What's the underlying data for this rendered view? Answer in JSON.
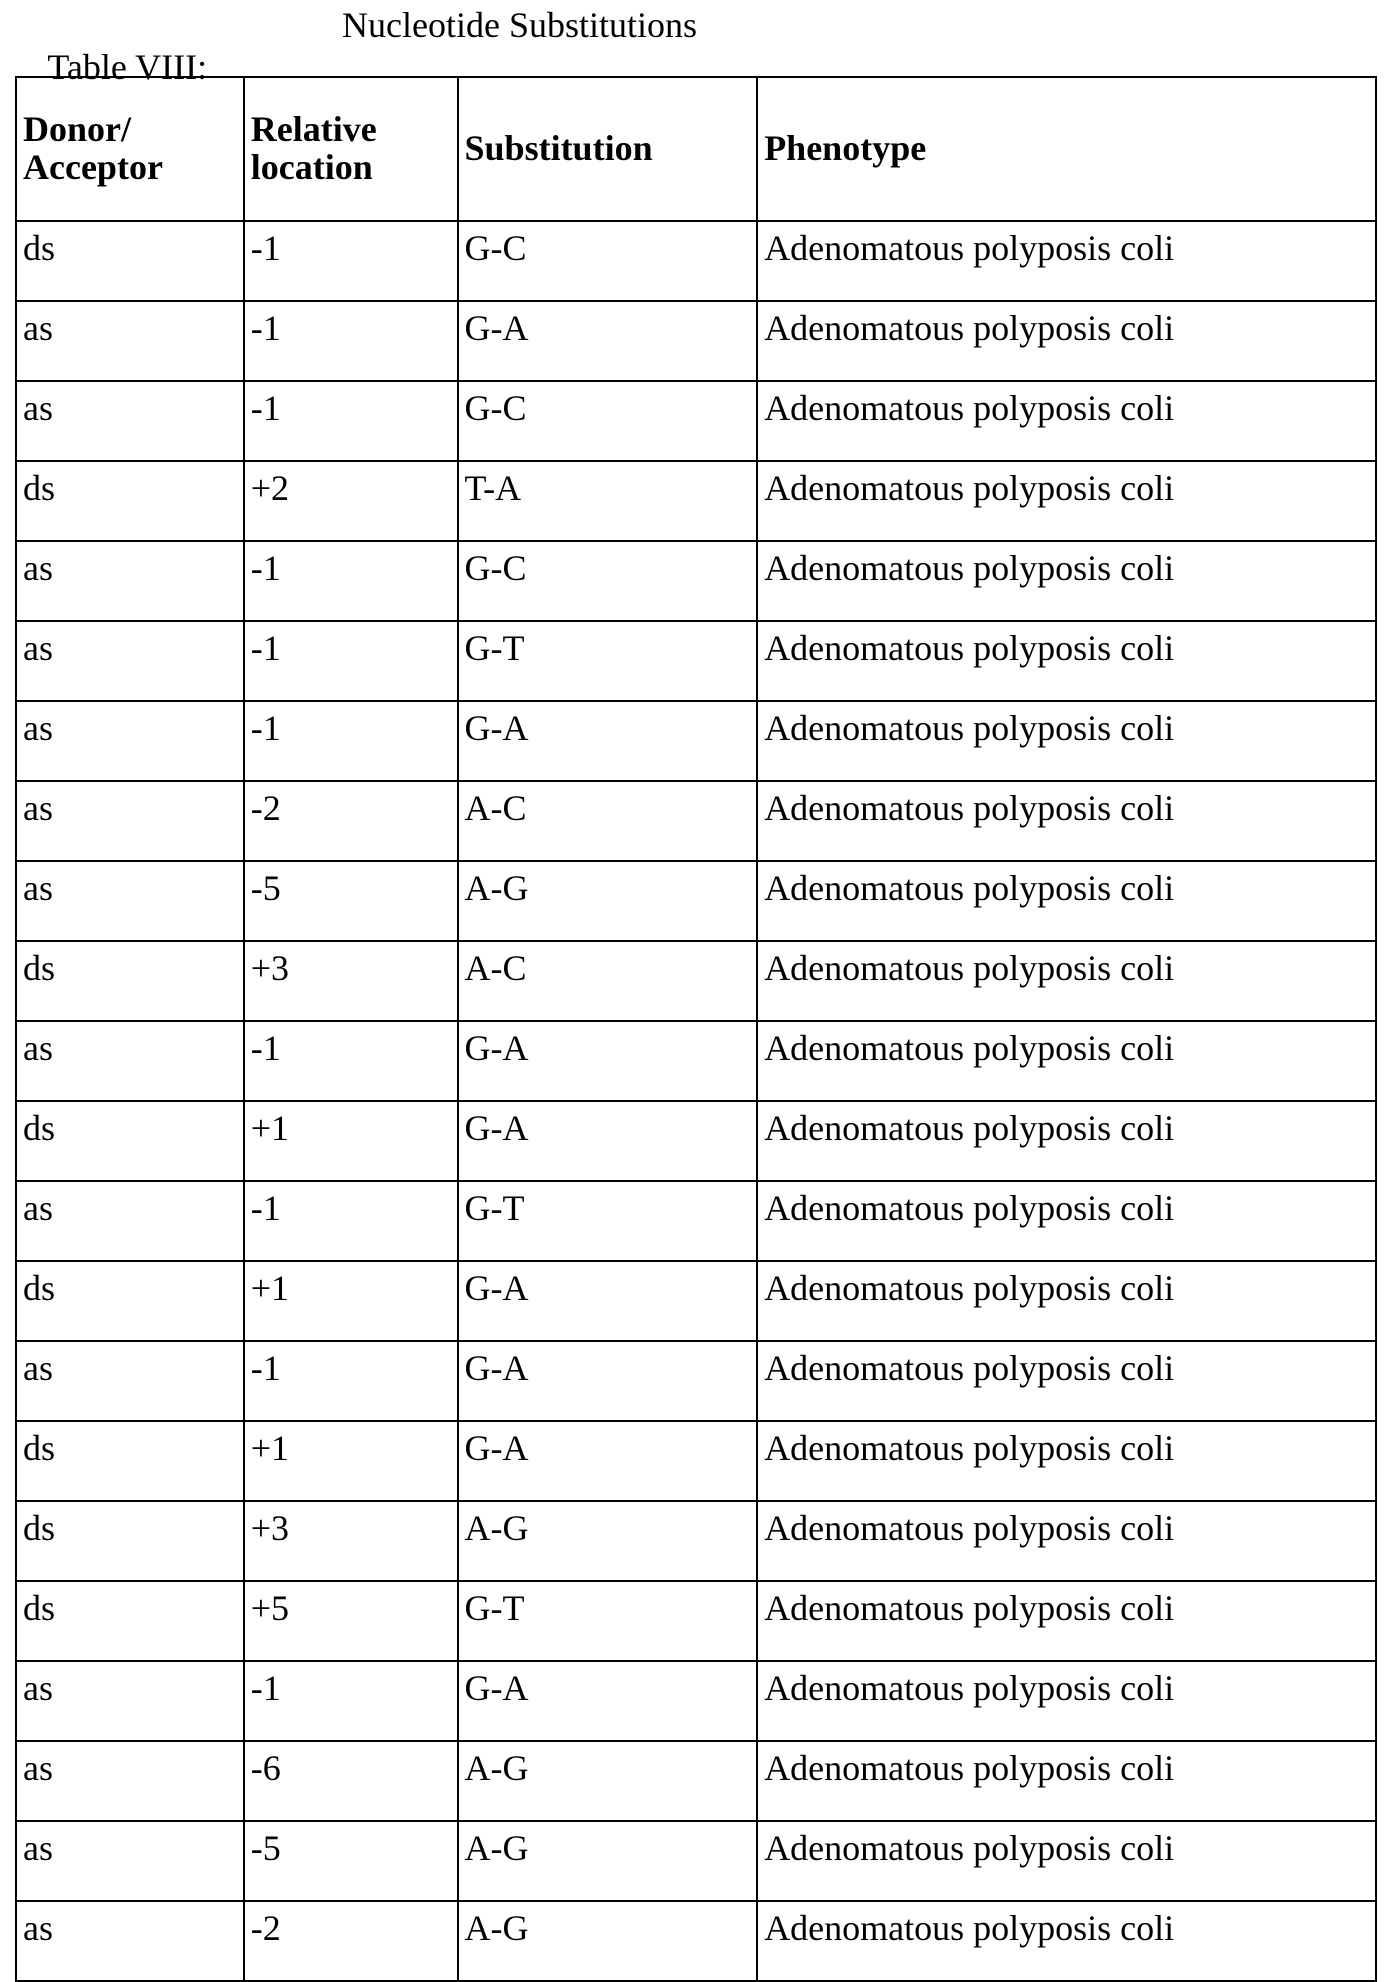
{
  "title": {
    "label": "Table VIII:",
    "text": "Nucleotide Substitutions"
  },
  "table": {
    "headers": [
      "Donor/ Acceptor",
      "Relative location",
      "Substitution",
      "Phenotype"
    ],
    "rows": [
      [
        "ds",
        "-1",
        "G-C",
        "Adenomatous polyposis coli"
      ],
      [
        "as",
        "-1",
        "G-A",
        "Adenomatous polyposis coli"
      ],
      [
        "as",
        "-1",
        "G-C",
        "Adenomatous polyposis coli"
      ],
      [
        "ds",
        "+2",
        "T-A",
        "Adenomatous polyposis coli"
      ],
      [
        "as",
        "-1",
        "G-C",
        "Adenomatous polyposis coli"
      ],
      [
        "as",
        "-1",
        "G-T",
        "Adenomatous polyposis coli"
      ],
      [
        "as",
        "-1",
        "G-A",
        "Adenomatous polyposis coli"
      ],
      [
        "as",
        "-2",
        "A-C",
        "Adenomatous polyposis coli"
      ],
      [
        "as",
        "-5",
        "A-G",
        "Adenomatous polyposis coli"
      ],
      [
        "ds",
        "+3",
        "A-C",
        "Adenomatous polyposis coli"
      ],
      [
        "as",
        "-1",
        "G-A",
        "Adenomatous polyposis coli"
      ],
      [
        "ds",
        "+1",
        "G-A",
        "Adenomatous polyposis coli"
      ],
      [
        "as",
        "-1",
        "G-T",
        "Adenomatous polyposis coli"
      ],
      [
        "ds",
        "+1",
        "G-A",
        "Adenomatous polyposis coli"
      ],
      [
        "as",
        "-1",
        "G-A",
        "Adenomatous polyposis coli"
      ],
      [
        "ds",
        "+1",
        "G-A",
        "Adenomatous polyposis coli"
      ],
      [
        "ds",
        "+3",
        "A-G",
        "Adenomatous polyposis coli"
      ],
      [
        "ds",
        "+5",
        "G-T",
        "Adenomatous polyposis coli"
      ],
      [
        "as",
        "-1",
        "G-A",
        "Adenomatous polyposis coli"
      ],
      [
        "as",
        "-6",
        "A-G",
        "Adenomatous polyposis coli"
      ],
      [
        "as",
        "-5",
        "A-G",
        "Adenomatous polyposis coli"
      ],
      [
        "as",
        "-2",
        "A-G",
        "Adenomatous polyposis coli"
      ]
    ]
  }
}
